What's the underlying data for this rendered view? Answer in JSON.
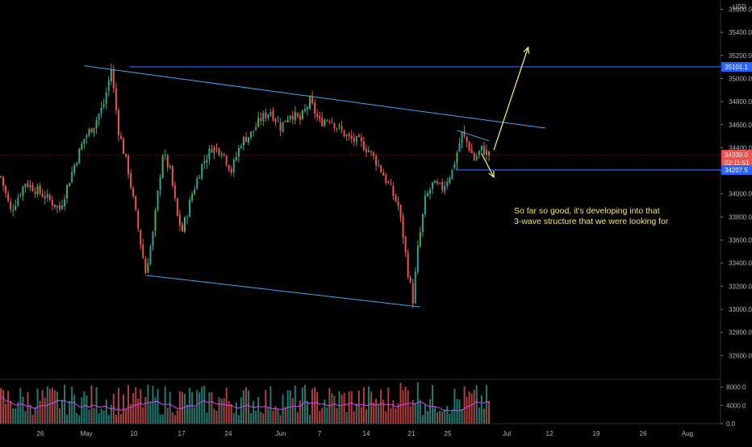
{
  "chart_data": {
    "type": "candlestick",
    "currency": "USD",
    "y_axis": {
      "ticks": [
        32600,
        32800,
        33000,
        33200,
        33400,
        33600,
        33800,
        34000,
        34200,
        34400,
        34600,
        34800,
        35000,
        35200,
        35400,
        35600
      ],
      "tick_labels": [
        "32600.0",
        "32800.0",
        "33000.0",
        "33200.0",
        "33400.0",
        "33600.0",
        "33800.0",
        "34000.0",
        "34200.0",
        "34400.0",
        "34600.0",
        "34800.0",
        "35000.0",
        "35200.0",
        "35400.0",
        "35600.0"
      ],
      "range": [
        32400,
        35680
      ]
    },
    "x_axis": {
      "labels": [
        "26",
        "May",
        "10",
        "17",
        "24",
        "Jun",
        "7",
        "14",
        "21",
        "25",
        "Jul",
        "12",
        "19",
        "26",
        "Aug"
      ]
    },
    "price_labels": {
      "upper_level": "35101.1",
      "current_price": "34339.0",
      "countdown": "02:11:51",
      "lower_level": "34207.5"
    },
    "levels": {
      "upper": 35101.1,
      "current": 34339.0,
      "lower": 34207.5
    },
    "price_anchors": [
      [
        0,
        34150
      ],
      [
        4,
        33850
      ],
      [
        10,
        34100
      ],
      [
        18,
        33980
      ],
      [
        24,
        33870
      ],
      [
        30,
        34250
      ],
      [
        34,
        34480
      ],
      [
        38,
        34600
      ],
      [
        42,
        34780
      ],
      [
        45,
        35080
      ],
      [
        48,
        34550
      ],
      [
        52,
        34200
      ],
      [
        56,
        33700
      ],
      [
        59,
        33320
      ],
      [
        62,
        33650
      ],
      [
        66,
        34350
      ],
      [
        69,
        34200
      ],
      [
        72,
        33800
      ],
      [
        74,
        33680
      ],
      [
        78,
        34000
      ],
      [
        82,
        34250
      ],
      [
        86,
        34400
      ],
      [
        90,
        34380
      ],
      [
        94,
        34200
      ],
      [
        98,
        34450
      ],
      [
        102,
        34520
      ],
      [
        106,
        34650
      ],
      [
        110,
        34720
      ],
      [
        114,
        34580
      ],
      [
        118,
        34700
      ],
      [
        122,
        34640
      ],
      [
        126,
        34800
      ],
      [
        130,
        34620
      ],
      [
        134,
        34660
      ],
      [
        138,
        34560
      ],
      [
        142,
        34480
      ],
      [
        146,
        34450
      ],
      [
        150,
        34380
      ],
      [
        154,
        34250
      ],
      [
        158,
        34080
      ],
      [
        162,
        33900
      ],
      [
        164,
        33640
      ],
      [
        166,
        33320
      ],
      [
        168,
        33080
      ],
      [
        170,
        33520
      ],
      [
        173,
        33950
      ],
      [
        176,
        34080
      ],
      [
        180,
        34050
      ],
      [
        184,
        34200
      ],
      [
        188,
        34520
      ],
      [
        190,
        34450
      ],
      [
        193,
        34300
      ],
      [
        196,
        34390
      ],
      [
        199,
        34339
      ]
    ],
    "volume_axis": {
      "ticks": [
        0,
        4000,
        8000
      ],
      "tick_labels": [
        "0.0",
        "4000.0",
        "8000.0"
      ],
      "max": 9500
    },
    "drawings": {
      "upper_trendline": [
        [
          34,
          35110
        ],
        [
          222,
          34570
        ]
      ],
      "lower_trendline": [
        [
          59,
          33295
        ],
        [
          171,
          33020
        ]
      ],
      "small_triangle_line": [
        [
          186,
          34550
        ],
        [
          199,
          34460
        ]
      ],
      "projection_up": {
        "from": [
          201,
          34380
        ],
        "to": [
          215,
          35270
        ]
      },
      "projection_down": {
        "from": [
          196,
          34350
        ],
        "to": [
          201,
          34145
        ]
      }
    },
    "annotation": "So far so good, it's developing into that\n3-wave structure that we were looking for",
    "colors": {
      "up": "#26a69a",
      "up_bright": "#4caf50",
      "down": "#ef5350",
      "trendline": "#3fa9f5",
      "level_line": "#2962ff",
      "current_line": "#b71c1c",
      "arrow": "#f5e663",
      "volume_ma": "#e040fb",
      "label_bg": "#2962ff",
      "current_label_bg": "#ef5350"
    }
  }
}
